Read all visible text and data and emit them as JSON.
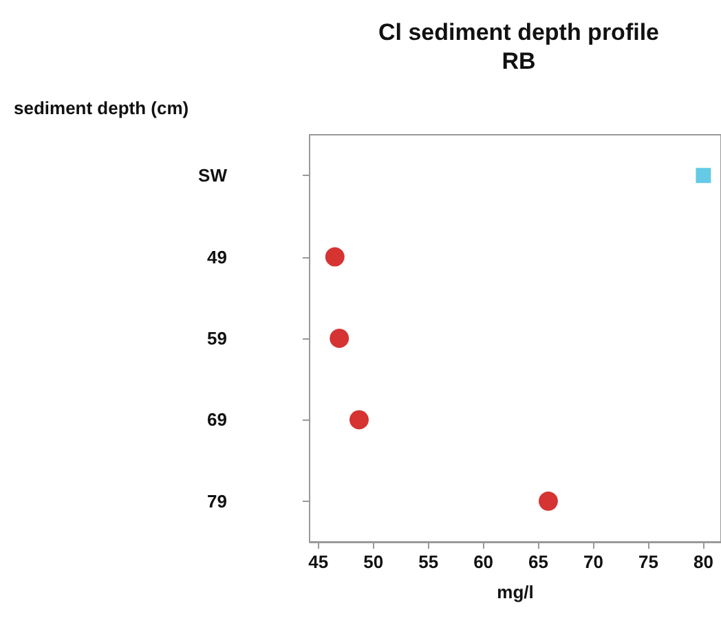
{
  "chart_data": {
    "type": "scatter",
    "orientation": "horizontal",
    "title": "Cl sediment depth profile\nRB",
    "xlabel": "mg/l",
    "ylabel": "sediment depth (cm)",
    "categories": [
      "SW",
      "49",
      "59",
      "69",
      "79"
    ],
    "series": [
      {
        "color": "#cc0000",
        "marker": "circle",
        "values": [
          null,
          46.5,
          46.9,
          48.7,
          65.9
        ]
      },
      {
        "color": "#3fbde0",
        "marker": "square",
        "values": [
          80,
          null,
          null,
          null,
          null
        ]
      }
    ],
    "xlim": [
      44.2,
      81.6
    ],
    "xticks": [
      45,
      50,
      55,
      60,
      65,
      70,
      75,
      80
    ],
    "grid": false
  }
}
